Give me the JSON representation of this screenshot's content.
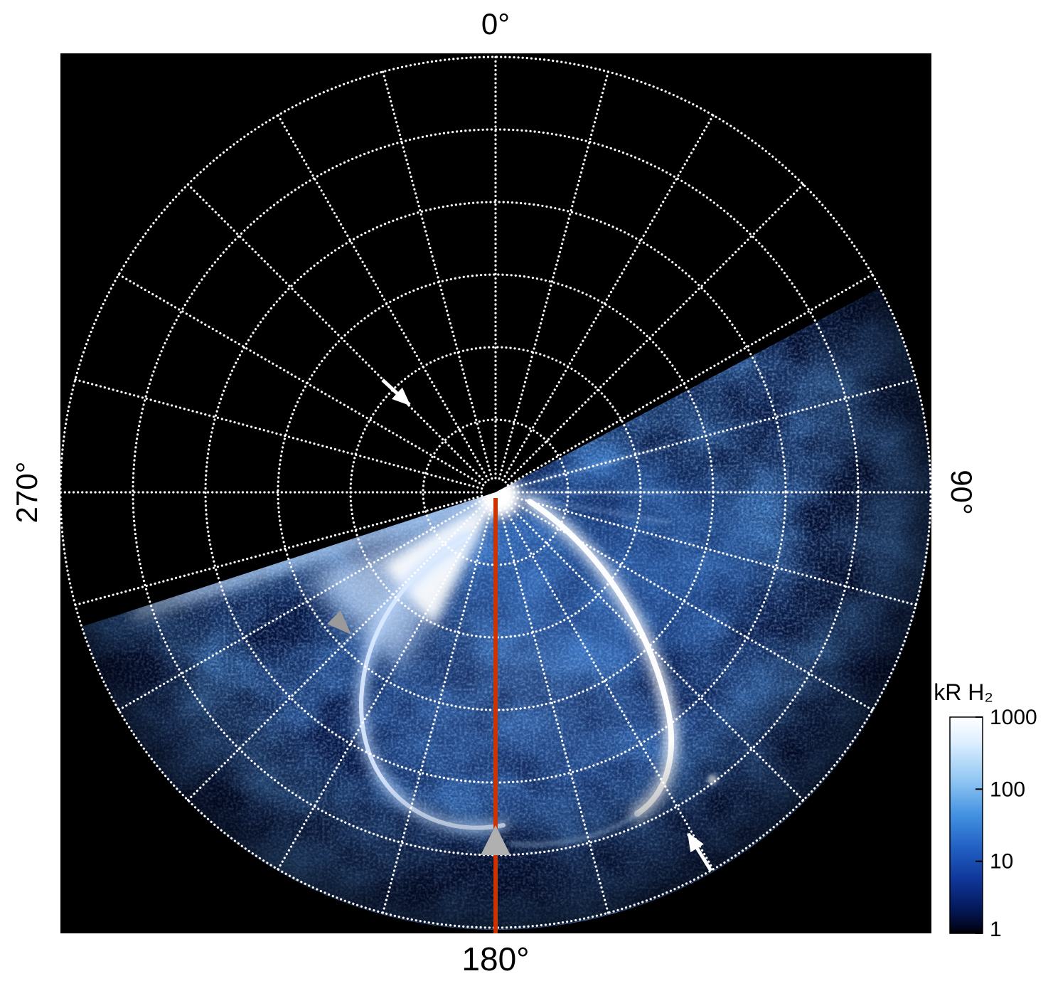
{
  "figure": {
    "description": "Polar projection map of auroral H2 emission with dotted polar grid, red 180-degree meridian line, annotation arrows and logarithmic brightness colorbar",
    "background_color": "#ffffff",
    "plot_background_color": "#000000",
    "grid_color": "#ffffff"
  },
  "angle_labels": {
    "top": "0°",
    "right": "90°",
    "bottom": "180°",
    "left": "270°"
  },
  "colorbar": {
    "title": "kR H₂",
    "ticks": [
      "1000",
      "100",
      "10",
      "1"
    ],
    "scale": "log",
    "top_color": "#ffffff",
    "bottom_color": "#000000"
  },
  "annotations": {
    "meridian_line_color": "#cc3300",
    "gray_arrow_color": "#a6a6a6",
    "white_arrow_color": "#ffffff"
  },
  "chart_data": {
    "type": "heatmap",
    "projection": "polar",
    "quantity": "H2 auroral emission brightness",
    "units": "kR",
    "color_scale": "log",
    "color_range": [
      1,
      1000
    ],
    "colorbar_label": "kR H₂",
    "colorbar_ticks": [
      1000,
      100,
      10,
      1
    ],
    "angular_tick_labels_deg": [
      0,
      90,
      180,
      270
    ],
    "angular_gridline_spacing_deg": 15,
    "radial_gridlines": 6,
    "data_sector_azimuth_deg": [
      62,
      252
    ],
    "features": [
      {
        "name": "polar-bright-spot",
        "description": "intense white emission (~1000 kR) at projection center extending in a fan toward the dusk-side sector edge"
      },
      {
        "name": "main-auroral-oval",
        "description": "bright emission arc encircling the pole through the observed sector, brightest on the right (dawn) flank"
      },
      {
        "name": "diffuse-emission",
        "description": "patchy 10-100 kR emission filling the observed sector between azimuths 62 and 252 degrees"
      },
      {
        "name": "meridian-line",
        "description": "solid red line along the 180 degree meridian from the pole to the outer edge",
        "color": "#cc3300"
      },
      {
        "name": "gray-arrowheads",
        "count": 2,
        "color": "#a6a6a6"
      },
      {
        "name": "white-arrows",
        "count": 2,
        "color": "#ffffff"
      }
    ]
  }
}
